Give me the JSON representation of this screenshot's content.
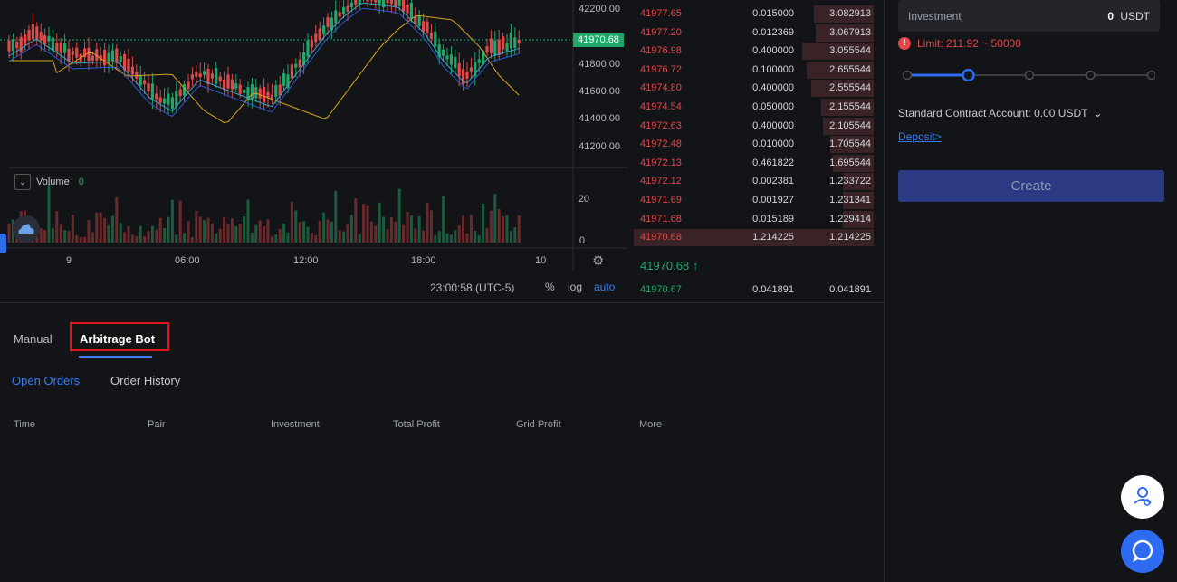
{
  "chart": {
    "price_axis": [
      "42200.00",
      "41800.00",
      "41600.00",
      "41400.00",
      "41200.00"
    ],
    "current_price": "41970.68",
    "volume_label": "Volume",
    "volume_value": "0",
    "volume_axis": [
      "20",
      "0"
    ],
    "time_axis": [
      "9",
      "06:00",
      "12:00",
      "18:00",
      "10"
    ],
    "timezone": "23:00:58 (UTC-5)",
    "percent_label": "%",
    "log_label": "log",
    "auto_label": "auto",
    "colors": {
      "up": "#1fa76a",
      "down": "#e0484a",
      "ma_fast": "#3aa6c9",
      "ma_mid": "#2e59d6",
      "ma_slow": "#d9a520"
    }
  },
  "orderbook": {
    "asks": [
      {
        "price": "41977.65",
        "amount": "0.015000",
        "total": "3.082913",
        "depth": 0.25
      },
      {
        "price": "41977.20",
        "amount": "0.012369",
        "total": "3.067913",
        "depth": 0.24
      },
      {
        "price": "41976.98",
        "amount": "0.400000",
        "total": "3.055544",
        "depth": 0.3
      },
      {
        "price": "41976.72",
        "amount": "0.100000",
        "total": "2.655544",
        "depth": 0.28
      },
      {
        "price": "41974.80",
        "amount": "0.400000",
        "total": "2.555544",
        "depth": 0.26
      },
      {
        "price": "41974.54",
        "amount": "0.050000",
        "total": "2.155544",
        "depth": 0.22
      },
      {
        "price": "41972.63",
        "amount": "0.400000",
        "total": "2.105544",
        "depth": 0.21
      },
      {
        "price": "41972.48",
        "amount": "0.010000",
        "total": "1.705544",
        "depth": 0.18
      },
      {
        "price": "41972.13",
        "amount": "0.461822",
        "total": "1.695544",
        "depth": 0.17
      },
      {
        "price": "41972.12",
        "amount": "0.002381",
        "total": "1.233722",
        "depth": 0.13
      },
      {
        "price": "41971.69",
        "amount": "0.001927",
        "total": "1.231341",
        "depth": 0.13
      },
      {
        "price": "41971.68",
        "amount": "0.015189",
        "total": "1.229414",
        "depth": 0.13
      },
      {
        "price": "41970.68",
        "amount": "1.214225",
        "total": "1.214225",
        "depth": 1.0
      }
    ],
    "last_price": "41970.68 ↑",
    "bid": {
      "price": "41970.67",
      "amount": "0.041891",
      "total": "0.041891"
    }
  },
  "form": {
    "investment_label": "Investment",
    "investment_value": "0",
    "investment_unit": "USDT",
    "limit_icon": "!",
    "limit_text": "Limit: 211.92 ~ 50000",
    "slider_level": 0.2,
    "account_text": "Standard Contract Account: 0.00 USDT",
    "account_chevron": "⌄",
    "deposit_text": "Deposit>",
    "create_label": "Create"
  },
  "tabs": {
    "manual": "Manual",
    "bot": "Arbitrage Bot",
    "open_orders": "Open Orders",
    "order_history": "Order History"
  },
  "table": {
    "columns": [
      "Time",
      "Pair",
      "Investment",
      "Total Profit",
      "Grid Profit",
      "More"
    ]
  }
}
